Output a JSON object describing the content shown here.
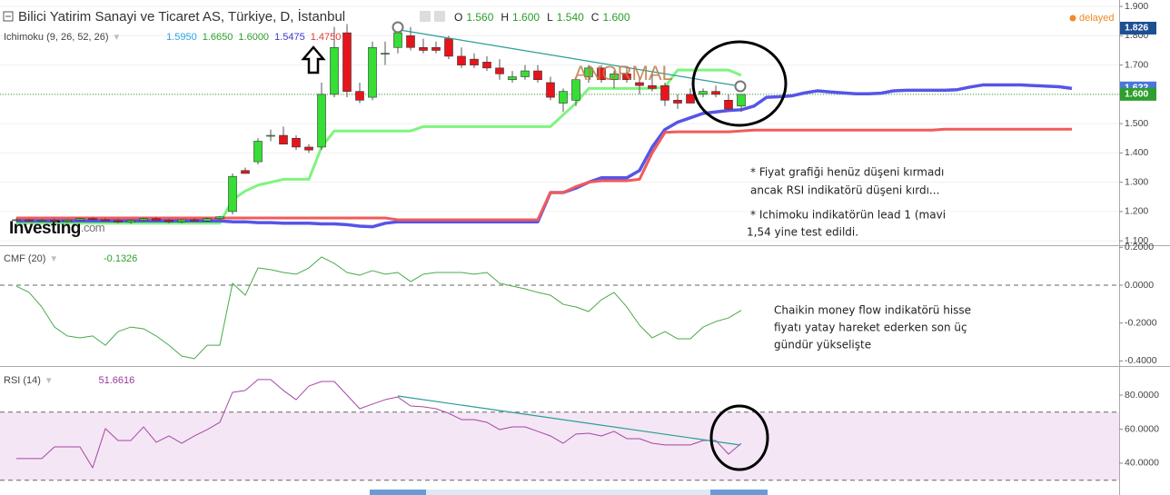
{
  "title": "Bilici Yatirim Sanayi ve Ticaret AS, Türkiye, D, İstanbul",
  "ohlc": [
    {
      "label": "O",
      "value": "1.560"
    },
    {
      "label": "H",
      "value": "1.600"
    },
    {
      "label": "L",
      "value": "1.540"
    },
    {
      "label": "C",
      "value": "1.600"
    }
  ],
  "status": "delayed",
  "logo": {
    "name": "Investing",
    "suffix": ".com"
  },
  "annotations": {
    "highlight": "ANORMAL",
    "notes": [
      "* Fiyat grafiği henüz düşeni kırmadı",
      "ancak RSI indikatörü düşeni kırdı...",
      "* Ichimoku indikatörün lead 1 (mavi",
      "1,54 yine test edildi."
    ],
    "cmf_notes": [
      "Chaikin money flow indikatörü hisse",
      "fiyatı yatay hareket ederken son üç",
      "gündür yükselişte"
    ]
  },
  "chart_data": [
    {
      "type": "candlestick",
      "indicator": "Ichimoku (9, 26, 52, 26)",
      "indicator_values": [
        {
          "label": "1.5950",
          "color": "#2aa5e0"
        },
        {
          "label": "1.6650",
          "color": "#2ea02e"
        },
        {
          "label": "1.6000",
          "color": "#2ea02e"
        },
        {
          "label": "1.5475",
          "color": "#3a3ad0"
        },
        {
          "label": "1.4750",
          "color": "#e03a3a"
        }
      ],
      "open": [
        1.17,
        1.172,
        1.168,
        1.17,
        1.166,
        1.171,
        1.176,
        1.172,
        1.169,
        1.164,
        1.17,
        1.176,
        1.17,
        1.165,
        1.172,
        1.168,
        1.176,
        1.2,
        1.34,
        1.37,
        1.46,
        1.46,
        1.45,
        1.42,
        1.42,
        1.6,
        1.81,
        1.61,
        1.59,
        1.74,
        1.76,
        1.8,
        1.76,
        1.76,
        1.79,
        1.73,
        1.72,
        1.71,
        1.69,
        1.65,
        1.66,
        1.68,
        1.64,
        1.57,
        1.58,
        1.66,
        1.69,
        1.65,
        1.67,
        1.64,
        1.63,
        1.63,
        1.58,
        1.6,
        1.6,
        1.61,
        1.58,
        1.56
      ],
      "high": [
        1.178,
        1.176,
        1.175,
        1.177,
        1.174,
        1.18,
        1.182,
        1.178,
        1.176,
        1.172,
        1.18,
        1.182,
        1.176,
        1.174,
        1.178,
        1.18,
        1.185,
        1.33,
        1.35,
        1.45,
        1.48,
        1.49,
        1.46,
        1.43,
        1.64,
        1.83,
        1.84,
        1.64,
        1.78,
        1.78,
        1.83,
        1.83,
        1.79,
        1.78,
        1.8,
        1.76,
        1.74,
        1.73,
        1.72,
        1.68,
        1.7,
        1.7,
        1.66,
        1.62,
        1.66,
        1.7,
        1.7,
        1.68,
        1.69,
        1.66,
        1.67,
        1.64,
        1.6,
        1.62,
        1.62,
        1.63,
        1.6,
        1.6
      ],
      "low": [
        1.165,
        1.166,
        1.164,
        1.165,
        1.162,
        1.168,
        1.17,
        1.166,
        1.16,
        1.158,
        1.165,
        1.168,
        1.16,
        1.16,
        1.166,
        1.165,
        1.17,
        1.19,
        1.33,
        1.36,
        1.44,
        1.43,
        1.41,
        1.4,
        1.41,
        1.59,
        1.59,
        1.57,
        1.58,
        1.7,
        1.74,
        1.75,
        1.74,
        1.74,
        1.72,
        1.69,
        1.69,
        1.68,
        1.65,
        1.64,
        1.65,
        1.64,
        1.58,
        1.54,
        1.56,
        1.64,
        1.64,
        1.62,
        1.64,
        1.6,
        1.61,
        1.56,
        1.55,
        1.57,
        1.59,
        1.59,
        1.55,
        1.54
      ],
      "close": [
        1.172,
        1.168,
        1.17,
        1.166,
        1.171,
        1.176,
        1.172,
        1.169,
        1.164,
        1.17,
        1.176,
        1.17,
        1.165,
        1.172,
        1.168,
        1.176,
        1.182,
        1.32,
        1.33,
        1.44,
        1.46,
        1.43,
        1.42,
        1.41,
        1.6,
        1.76,
        1.61,
        1.58,
        1.76,
        1.74,
        1.81,
        1.76,
        1.75,
        1.75,
        1.73,
        1.7,
        1.7,
        1.69,
        1.67,
        1.66,
        1.68,
        1.65,
        1.59,
        1.61,
        1.65,
        1.69,
        1.65,
        1.67,
        1.65,
        1.63,
        1.62,
        1.58,
        1.57,
        1.57,
        1.61,
        1.6,
        1.55,
        1.6
      ],
      "up_color": "#36de36",
      "down_color": "#e8141b",
      "series": [
        {
          "color": "#7df57d",
          "values": [
            1.16,
            1.16,
            1.16,
            1.16,
            1.16,
            1.16,
            1.16,
            1.16,
            1.16,
            1.16,
            1.16,
            1.16,
            1.16,
            1.16,
            1.16,
            1.16,
            1.16,
            1.24,
            1.27,
            1.29,
            1.3,
            1.31,
            1.31,
            1.31,
            1.42,
            1.475,
            1.475,
            1.475,
            1.475,
            1.475,
            1.475,
            1.475,
            1.49,
            1.49,
            1.49,
            1.49,
            1.49,
            1.49,
            1.49,
            1.49,
            1.49,
            1.49,
            1.49,
            1.53,
            1.57,
            1.62,
            1.62,
            1.62,
            1.62,
            1.62,
            1.62,
            1.625,
            1.683,
            1.683,
            1.683,
            1.683,
            1.683,
            1.665,
            null,
            null,
            null,
            null,
            null,
            null,
            null,
            null,
            null,
            null,
            null,
            null,
            null,
            null,
            null,
            null,
            null,
            null,
            null,
            null,
            null,
            null,
            null,
            null,
            null,
            null
          ]
        },
        {
          "color": "#5555e8",
          "values": [
            1.168,
            1.168,
            1.168,
            1.168,
            1.168,
            1.168,
            1.168,
            1.168,
            1.168,
            1.168,
            1.168,
            1.168,
            1.168,
            1.168,
            1.168,
            1.168,
            1.168,
            1.165,
            1.165,
            1.162,
            1.162,
            1.16,
            1.16,
            1.16,
            1.158,
            1.158,
            1.155,
            1.15,
            1.148,
            1.16,
            1.165,
            1.165,
            1.165,
            1.165,
            1.165,
            1.165,
            1.165,
            1.165,
            1.165,
            1.165,
            1.165,
            1.165,
            1.265,
            1.265,
            1.28,
            1.3,
            1.315,
            1.315,
            1.315,
            1.34,
            1.42,
            1.48,
            1.505,
            1.52,
            1.535,
            1.54,
            1.545,
            1.5475,
            1.56,
            1.59,
            1.592,
            1.595,
            1.605,
            1.612,
            1.608,
            1.605,
            1.602,
            1.602,
            1.604,
            1.612,
            1.614,
            1.614,
            1.614,
            1.614,
            1.616,
            1.625,
            1.632,
            1.632,
            1.632,
            1.632,
            1.63,
            1.628,
            1.626,
            1.62
          ]
        },
        {
          "color": "#f25a5a",
          "values": [
            1.178,
            1.178,
            1.178,
            1.178,
            1.178,
            1.178,
            1.178,
            1.178,
            1.178,
            1.178,
            1.178,
            1.178,
            1.178,
            1.178,
            1.178,
            1.178,
            1.178,
            1.178,
            1.178,
            1.178,
            1.178,
            1.178,
            1.178,
            1.178,
            1.178,
            1.178,
            1.178,
            1.178,
            1.178,
            1.178,
            1.172,
            1.172,
            1.172,
            1.172,
            1.172,
            1.172,
            1.172,
            1.172,
            1.172,
            1.172,
            1.172,
            1.172,
            1.265,
            1.265,
            1.285,
            1.3,
            1.305,
            1.305,
            1.305,
            1.31,
            1.4,
            1.47,
            1.472,
            1.472,
            1.472,
            1.472,
            1.472,
            1.475,
            1.478,
            1.478,
            1.478,
            1.478,
            1.478,
            1.478,
            1.478,
            1.478,
            1.478,
            1.478,
            1.478,
            1.478,
            1.478,
            1.478,
            1.478,
            1.481,
            1.481,
            1.481,
            1.481,
            1.481,
            1.481,
            1.481,
            1.481,
            1.481,
            1.481,
            1.481
          ]
        }
      ],
      "ylim": [
        1.085,
        1.922
      ],
      "yticks": [
        {
          "value": 1.1,
          "label": "1.100"
        },
        {
          "value": 1.2,
          "label": "1.200"
        },
        {
          "value": 1.3,
          "label": "1.300"
        },
        {
          "value": 1.4,
          "label": "1.400"
        },
        {
          "value": 1.5,
          "label": "1.500"
        },
        {
          "value": 1.6,
          "label": "1.600"
        },
        {
          "value": 1.7,
          "label": "1.700"
        },
        {
          "value": 1.8,
          "label": "1.800"
        },
        {
          "value": 1.9,
          "label": "1.900"
        }
      ],
      "price_marks": [
        {
          "value": 1.826,
          "label": "1.826",
          "color": "#1d4f94"
        },
        {
          "value": 1.622,
          "label": "1.622",
          "color": "#4a78d8"
        },
        {
          "value": 1.6,
          "label": "1.600",
          "color": "#2e9e2e",
          "guide": true
        }
      ],
      "grid": true
    },
    {
      "type": "line",
      "indicator": "CMF (20)",
      "color": "#4aa84a",
      "values": [
        -0.005,
        -0.038,
        -0.115,
        -0.221,
        -0.268,
        -0.278,
        -0.268,
        -0.317,
        -0.245,
        -0.221,
        -0.23,
        -0.268,
        -0.317,
        -0.374,
        -0.388,
        -0.317,
        -0.317,
        0.01,
        -0.053,
        0.091,
        0.082,
        0.067,
        0.058,
        0.091,
        0.149,
        0.115,
        0.067,
        0.053,
        0.077,
        0.058,
        0.067,
        0.019,
        0.058,
        0.067,
        0.067,
        0.067,
        0.058,
        0.067,
        0.01,
        -0.005,
        -0.019,
        -0.038,
        -0.053,
        -0.101,
        -0.115,
        -0.139,
        -0.077,
        -0.038,
        -0.115,
        -0.211,
        -0.278,
        -0.245,
        -0.283,
        -0.283,
        -0.221,
        -0.192,
        -0.173,
        -0.1326
      ],
      "value_color": "#2ea02e",
      "ylim": [
        -0.422,
        0.211
      ],
      "yticks": [
        {
          "value": 0.2,
          "label": "0.2000"
        },
        {
          "value": 0,
          "label": "0.0000"
        },
        {
          "value": -0.2,
          "label": "-0.2000"
        },
        {
          "value": -0.4,
          "label": "-0.4000"
        }
      ],
      "levels": [
        0
      ]
    },
    {
      "type": "line",
      "indicator": "RSI (14)",
      "color": "#a447a4",
      "values": [
        42.7,
        42.7,
        42.7,
        49.6,
        49.6,
        49.6,
        37.3,
        60.3,
        53.3,
        53.3,
        61.3,
        52.3,
        56.0,
        51.7,
        56.0,
        59.7,
        64.0,
        81.6,
        82.7,
        89.1,
        89.1,
        82.7,
        77.3,
        85.3,
        88.0,
        88.0,
        80.0,
        72.0,
        74.7,
        77.3,
        78.9,
        73.6,
        73.1,
        72.0,
        69.3,
        65.6,
        65.6,
        64.0,
        59.7,
        61.3,
        61.3,
        58.7,
        56.0,
        51.7,
        57.1,
        57.6,
        56.0,
        58.7,
        54.4,
        54.4,
        51.7,
        50.7,
        50.7,
        50.7,
        53.3,
        53.3,
        45.3,
        51.6616
      ],
      "value_color": "#9a3a9a",
      "ylim": [
        21.3,
        96
      ],
      "yticks": [
        {
          "value": 80,
          "label": "80.0000"
        },
        {
          "value": 60,
          "label": "60.0000"
        },
        {
          "value": 40,
          "label": "40.0000"
        }
      ],
      "levels": [
        30,
        70
      ],
      "band_color": "#f4e6f4"
    }
  ]
}
